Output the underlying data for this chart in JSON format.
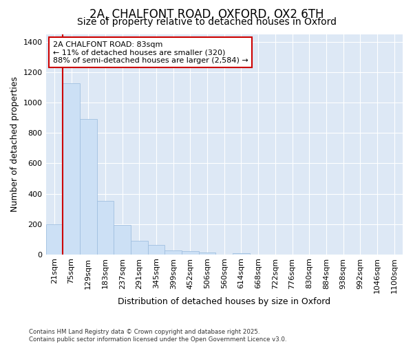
{
  "title_line1": "2A, CHALFONT ROAD, OXFORD, OX2 6TH",
  "title_line2": "Size of property relative to detached houses in Oxford",
  "xlabel": "Distribution of detached houses by size in Oxford",
  "ylabel": "Number of detached properties",
  "categories": [
    "21sqm",
    "75sqm",
    "129sqm",
    "183sqm",
    "237sqm",
    "291sqm",
    "345sqm",
    "399sqm",
    "452sqm",
    "506sqm",
    "560sqm",
    "614sqm",
    "668sqm",
    "722sqm",
    "776sqm",
    "830sqm",
    "884sqm",
    "938sqm",
    "992sqm",
    "1046sqm",
    "1100sqm"
  ],
  "values": [
    197,
    1130,
    893,
    352,
    193,
    90,
    60,
    25,
    20,
    12,
    0,
    10,
    0,
    0,
    0,
    0,
    0,
    0,
    0,
    0,
    0
  ],
  "bar_color": "#cce0f5",
  "bar_edge_color": "#a0c0e0",
  "marker_color": "#cc0000",
  "annotation_text": "2A CHALFONT ROAD: 83sqm\n← 11% of detached houses are smaller (320)\n88% of semi-detached houses are larger (2,584) →",
  "annotation_box_facecolor": "#ffffff",
  "annotation_box_edgecolor": "#cc0000",
  "plot_bg_color": "#dde8f5",
  "fig_bg_color": "#ffffff",
  "ylim": [
    0,
    1450
  ],
  "yticks": [
    0,
    200,
    400,
    600,
    800,
    1000,
    1200,
    1400
  ],
  "title_fontsize": 12,
  "subtitle_fontsize": 10,
  "axis_label_fontsize": 9,
  "tick_fontsize": 8,
  "annotation_fontsize": 8,
  "footer_text": "Contains HM Land Registry data © Crown copyright and database right 2025.\nContains public sector information licensed under the Open Government Licence v3.0."
}
